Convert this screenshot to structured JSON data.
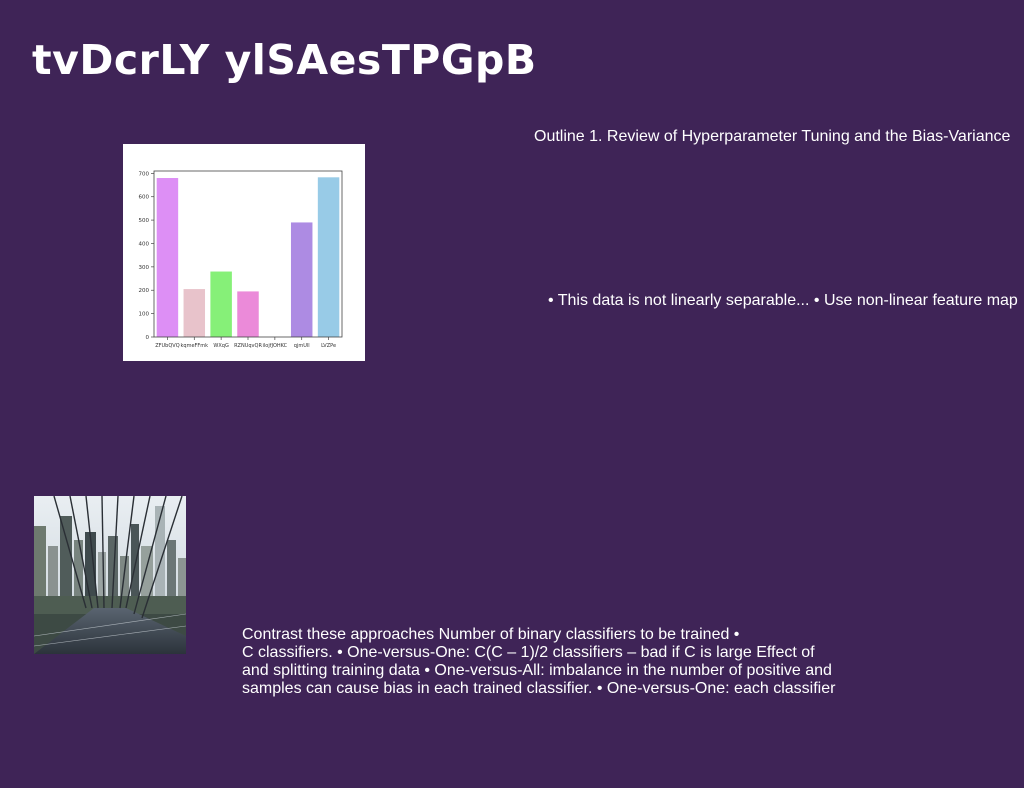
{
  "slide": {
    "title": "tvDcrLY ylSAesTPGpB",
    "outline_text": "Outline 1. Review of Hyperparameter Tuning and the Bias-Variance",
    "bullets_text": "• This data is not linearly separable... • Use non-linear feature map",
    "contrast_lines": [
      "Contrast these approaches Number of binary classifiers to be trained •",
      "C classifiers. • One-versus-One: C(C – 1)/2 classifiers – bad if C is large Effect of",
      "and splitting training data • One-versus-All: imbalance in the number of positive and",
      "samples can cause bias in each trained classifier. • One-versus-One: each classifier"
    ],
    "photo_icon": "city-skyline-photo"
  },
  "chart_data": {
    "type": "bar",
    "categories": [
      "ZFUbQVQ",
      "kqmeFFmk",
      "WXqG",
      "RZNUqvQR",
      "ilojfJOHKC",
      "qjmUll",
      "LVZPe"
    ],
    "values": [
      680,
      205,
      280,
      195,
      0,
      490,
      683
    ],
    "colors": [
      "#dd8ff5",
      "#e8c3cb",
      "#86f078",
      "#eb8ad9",
      "#cccccc",
      "#ad8be3",
      "#98cbe7"
    ],
    "yticks": [
      0,
      100,
      200,
      300,
      400,
      500,
      600,
      700
    ],
    "ylim": [
      0,
      710
    ],
    "title": "",
    "xlabel": "",
    "ylabel": ""
  }
}
